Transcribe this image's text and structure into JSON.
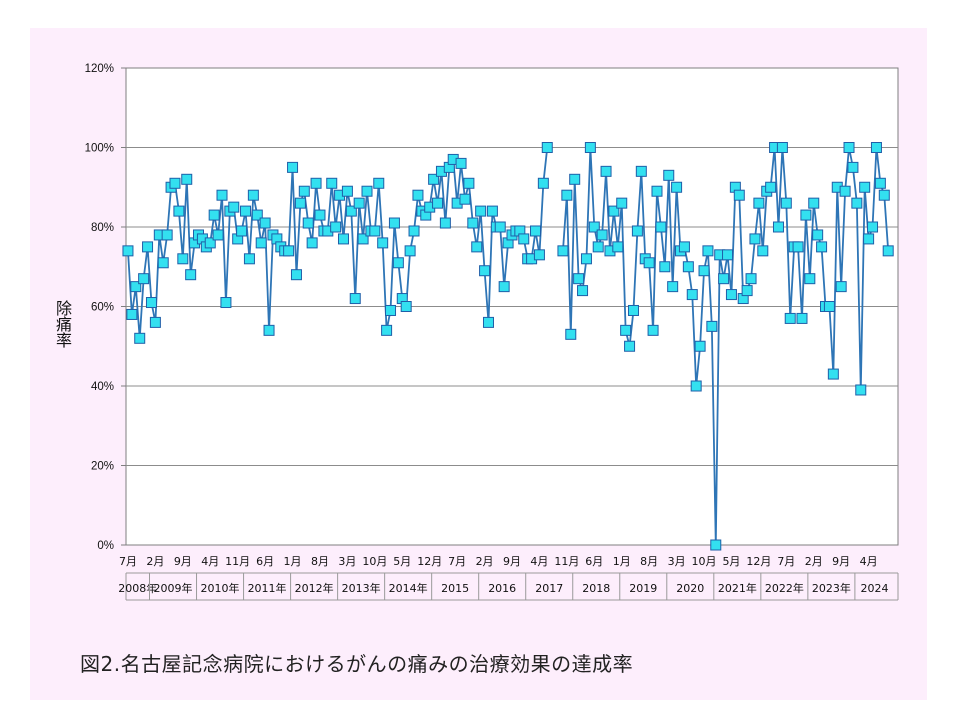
{
  "caption": "図2.名古屋記念病院におけるがんの痛みの治療効果の達成率",
  "chart_data": {
    "type": "line",
    "title": "",
    "xlabel": "",
    "ylabel": "除痛率",
    "ylim": [
      0,
      120
    ],
    "yticks": [
      "0%",
      "20%",
      "40%",
      "60%",
      "80%",
      "100%",
      "120%"
    ],
    "grid": true,
    "x_range": [
      "2008-07",
      "2024-11"
    ],
    "x_month_labels": [
      {
        "date": "2008-07",
        "label": "7月"
      },
      {
        "date": "2009-02",
        "label": "2月"
      },
      {
        "date": "2009-09",
        "label": "9月"
      },
      {
        "date": "2010-04",
        "label": "4月"
      },
      {
        "date": "2010-11",
        "label": "11月"
      },
      {
        "date": "2011-06",
        "label": "6月"
      },
      {
        "date": "2012-01",
        "label": "1月"
      },
      {
        "date": "2012-08",
        "label": "8月"
      },
      {
        "date": "2013-03",
        "label": "3月"
      },
      {
        "date": "2013-10",
        "label": "10月"
      },
      {
        "date": "2014-05",
        "label": "5月"
      },
      {
        "date": "2014-12",
        "label": "12月"
      },
      {
        "date": "2015-07",
        "label": "7月"
      },
      {
        "date": "2016-02",
        "label": "2月"
      },
      {
        "date": "2016-09",
        "label": "9月"
      },
      {
        "date": "2017-04",
        "label": "4月"
      },
      {
        "date": "2017-11",
        "label": "11月"
      },
      {
        "date": "2018-06",
        "label": "6月"
      },
      {
        "date": "2019-01",
        "label": "1月"
      },
      {
        "date": "2019-08",
        "label": "8月"
      },
      {
        "date": "2020-03",
        "label": "3月"
      },
      {
        "date": "2020-10",
        "label": "10月"
      },
      {
        "date": "2021-05",
        "label": "5月"
      },
      {
        "date": "2021-12",
        "label": "12月"
      },
      {
        "date": "2022-07",
        "label": "7月"
      },
      {
        "date": "2023-02",
        "label": "2月"
      },
      {
        "date": "2023-09",
        "label": "9月"
      },
      {
        "date": "2024-04",
        "label": "4月"
      }
    ],
    "x_year_labels": [
      {
        "label": "2008年",
        "start": "2008-07",
        "end": "2009-01"
      },
      {
        "label": "2009年",
        "start": "2009-01",
        "end": "2010-01"
      },
      {
        "label": "2010年",
        "start": "2010-01",
        "end": "2011-01"
      },
      {
        "label": "2011年",
        "start": "2011-01",
        "end": "2012-01"
      },
      {
        "label": "2012年",
        "start": "2012-01",
        "end": "2013-01"
      },
      {
        "label": "2013年",
        "start": "2013-01",
        "end": "2014-01"
      },
      {
        "label": "2014年",
        "start": "2014-01",
        "end": "2015-01"
      },
      {
        "label": "2015",
        "start": "2015-01",
        "end": "2016-01"
      },
      {
        "label": "2016",
        "start": "2016-01",
        "end": "2017-01"
      },
      {
        "label": "2017",
        "start": "2017-01",
        "end": "2018-01"
      },
      {
        "label": "2018",
        "start": "2018-01",
        "end": "2019-01"
      },
      {
        "label": "2019",
        "start": "2019-01",
        "end": "2020-01"
      },
      {
        "label": "2020",
        "start": "2020-01",
        "end": "2021-01"
      },
      {
        "label": "2021年",
        "start": "2021-01",
        "end": "2022-01"
      },
      {
        "label": "2022年",
        "start": "2022-01",
        "end": "2023-01"
      },
      {
        "label": "2023年",
        "start": "2023-01",
        "end": "2024-01"
      },
      {
        "label": "2024",
        "start": "2024-01",
        "end": "2024-11"
      }
    ],
    "line_color": "#2e75b6",
    "marker_fill": "#33e0f0",
    "marker_stroke": "#1f5fa8",
    "series": [
      {
        "values": [
          74,
          58,
          65,
          52,
          67,
          75,
          61,
          56,
          78,
          71,
          78,
          90,
          91,
          84,
          72,
          92,
          68,
          76,
          78,
          77,
          75,
          76,
          83,
          78,
          88,
          61,
          84,
          85,
          77,
          79,
          84,
          72,
          88,
          83,
          76,
          81,
          54,
          78,
          77,
          75,
          74,
          74,
          95,
          68,
          86,
          89,
          81,
          76,
          91,
          83,
          79,
          79,
          91,
          80,
          88,
          77,
          89,
          84,
          62,
          86,
          77,
          89,
          79,
          79,
          91,
          76,
          54,
          59,
          81,
          71,
          62,
          60,
          74,
          79,
          88,
          84,
          83,
          85,
          92,
          86,
          94,
          81,
          95,
          97,
          86,
          96,
          87,
          91,
          81,
          75,
          84,
          69,
          56,
          84,
          80,
          80,
          65,
          76,
          78,
          79,
          79,
          77,
          72,
          72,
          79,
          73,
          91,
          100,
          null,
          null,
          null,
          74,
          88,
          53,
          92,
          67,
          64,
          72,
          100,
          80,
          75,
          78,
          94,
          74,
          84,
          75,
          86,
          54,
          50,
          59,
          79,
          94,
          72,
          71,
          54,
          89,
          80,
          70,
          93,
          65,
          90,
          74,
          75,
          70,
          63,
          40,
          50,
          69,
          74,
          55,
          0,
          73,
          67,
          73,
          63,
          90,
          88,
          62,
          64,
          67,
          77,
          86,
          74,
          89,
          90,
          100,
          80,
          100,
          86,
          57,
          75,
          75,
          57,
          83,
          67,
          86,
          78,
          75,
          60,
          60,
          43,
          90,
          65,
          89,
          100,
          95,
          86,
          39,
          90,
          77,
          80,
          100,
          91,
          88,
          74
        ]
      }
    ]
  }
}
